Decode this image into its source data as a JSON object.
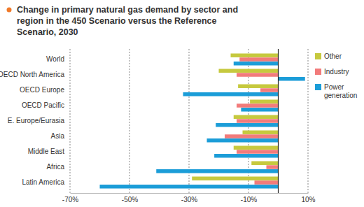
{
  "chart_data": {
    "type": "bar",
    "orientation": "horizontal",
    "title": "Change in primary natural gas demand by sector and region in the 450 Scenario versus the Reference Scenario, 2030",
    "categories": [
      "World",
      "OECD North America",
      "OECD Europe",
      "OECD Pacific",
      "E. Europe/Eurasia",
      "Asia",
      "Middle East",
      "Africa",
      "Latin America"
    ],
    "series": [
      {
        "name": "Other",
        "color": "#c6c93e",
        "values": [
          -16,
          -20,
          -13.5,
          -9.5,
          -15,
          -12,
          -15,
          -9,
          -29
        ]
      },
      {
        "name": "Industry",
        "color": "#f27b7b",
        "values": [
          -13,
          -14,
          -6,
          -14,
          -14,
          -18,
          -14,
          -4,
          -8
        ]
      },
      {
        "name": "Power generation",
        "color": "#1b9dd8",
        "values": [
          -15,
          9,
          -32,
          -12.5,
          -21,
          -24,
          -21.5,
          -41,
          -60
        ]
      }
    ],
    "xlim": [
      -70,
      10
    ],
    "xticks": [
      {
        "value": -70,
        "label": "-70%"
      },
      {
        "value": -50,
        "label": "-50%"
      },
      {
        "value": -30,
        "label": "-30%"
      },
      {
        "value": -10,
        "label": "-10%"
      },
      {
        "value": 10,
        "label": "10%"
      }
    ],
    "grid": true,
    "legend": "right"
  }
}
